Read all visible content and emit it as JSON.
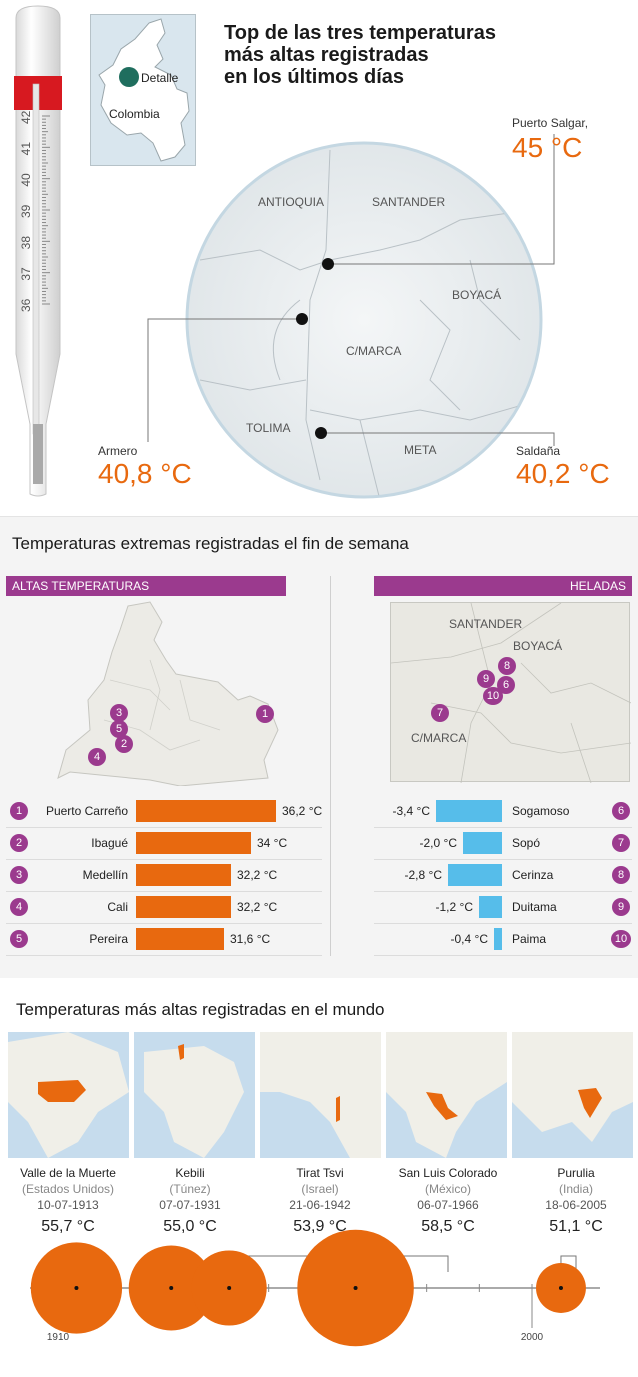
{
  "colors": {
    "accent": "#e8690f",
    "purple": "#9b3a8e",
    "cold": "#56bdea",
    "map_land": "#f0efe8",
    "map_water": "#c6dced"
  },
  "locator": {
    "detail_label": "Detalle",
    "country_label": "Colombia"
  },
  "title": "Top de las tres temperaturas más altas registradas en los últimos días",
  "title_lines": [
    "Top de las tres temperaturas",
    "más altas registradas",
    "en los últimos días"
  ],
  "thermometer": {
    "tick_labels": [
      "36",
      "37",
      "38",
      "39",
      "40",
      "41",
      "42"
    ]
  },
  "zoom_map": {
    "regions": [
      "ANTIOQUIA",
      "SANTANDER",
      "BOYACÁ",
      "C/MARCA",
      "TOLIMA",
      "META"
    ]
  },
  "top3": [
    {
      "place": "Puerto Salgar,",
      "temp": "45 °C",
      "value": 45
    },
    {
      "place": "Armero",
      "temp": "40,8 °C",
      "value": 40.8
    },
    {
      "place": "Saldaña",
      "temp": "40,2 °C",
      "value": 40.2
    }
  ],
  "weekend": {
    "title": "Temperaturas extremas registradas el fin de semana",
    "hot_header": "Altas temperaturas",
    "cold_header": "Heladas",
    "cold_map_regions": [
      "SANTANDER",
      "BOYACÁ",
      "C/MARCA"
    ]
  },
  "chart_data": [
    {
      "type": "bar",
      "orientation": "horizontal",
      "categories": [
        "Puerto Carreño",
        "Ibagué",
        "Medellín",
        "Cali",
        "Pereira"
      ],
      "values": [
        36.2,
        34,
        32.2,
        32.2,
        31.6
      ],
      "labels": [
        "36,2 °C",
        "34 °C",
        "32,2 °C",
        "32,2 °C",
        "31,6 °C"
      ],
      "ranks": [
        "1",
        "2",
        "3",
        "4",
        "5"
      ]
    },
    {
      "type": "bar",
      "orientation": "horizontal",
      "categories": [
        "Sogamoso",
        "Sopó",
        "Cerinza",
        "Duitama",
        "Paima"
      ],
      "values": [
        -3.4,
        -2.0,
        -2.8,
        -1.2,
        -0.4
      ],
      "labels": [
        "-3,4 °C",
        "-2,0 °C",
        "-2,8 °C",
        "-1,2 °C",
        "-0,4 °C"
      ],
      "ranks": [
        "6",
        "7",
        "8",
        "9",
        "10"
      ]
    },
    {
      "type": "scatter",
      "title": "Temperaturas más altas registradas en el mundo",
      "x_range": [
        1910,
        2005
      ],
      "x_tick_labels": [
        "1910",
        "2000"
      ],
      "points": [
        {
          "place": "Valle de la Muerte",
          "country": "(Estados Unidos)",
          "date": "10-07-1913",
          "year": 1913.5,
          "temp_label": "55,7 °C",
          "value": 55.7
        },
        {
          "place": "Kebili",
          "country": "(Túnez)",
          "date": "07-07-1931",
          "year": 1931.5,
          "temp_label": "55,0 °C",
          "value": 55.0
        },
        {
          "place": "Tirat Tsvi",
          "country": "(Israel)",
          "date": "21-06-1942",
          "year": 1942.5,
          "temp_label": "53,9 °C",
          "value": 53.9
        },
        {
          "place": "San Luis Colorado",
          "country": "(México)",
          "date": "06-07-1966",
          "year": 1966.5,
          "temp_label": "58,5 °C",
          "value": 58.5
        },
        {
          "place": "Purulia",
          "country": "(India)",
          "date": "18-06-2005",
          "year": 2005.5,
          "temp_label": "51,1 °C",
          "value": 51.1
        }
      ]
    }
  ]
}
